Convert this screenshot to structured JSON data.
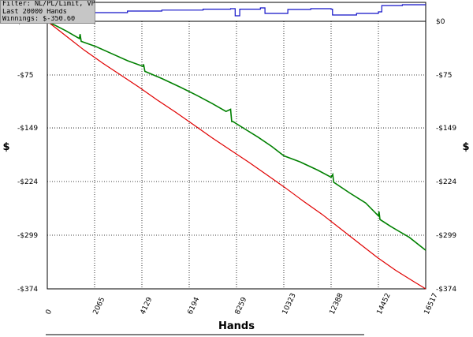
{
  "filter_box": {
    "line1": "Filter: NL/PL/Limit, VPIP = False",
    "line2": "Last  20000 Hands",
    "line3": "Winnings: $-350.60"
  },
  "chart_data": {
    "type": "line",
    "xlabel": "Hands",
    "ylabel_left": "$",
    "ylabel_right": "$",
    "xlim": [
      0,
      16517
    ],
    "ylim": [
      -374,
      0
    ],
    "x_ticks": [
      "0",
      "2065",
      "4129",
      "6194",
      "8259",
      "10323",
      "12388",
      "14452",
      "16517"
    ],
    "y_ticks": [
      "$0",
      "-$75",
      "-$149",
      "-$224",
      "-$299",
      "-$374"
    ],
    "y_tick_values": [
      0,
      -75,
      -149,
      -224,
      -299,
      -374
    ],
    "grid": true,
    "colors": {
      "green": "#008000",
      "red": "#e00000",
      "blue": "#1010c8",
      "grid": "#000000"
    },
    "series": [
      {
        "color": "green",
        "x": [
          0,
          800,
          1400,
          1430,
          1480,
          2100,
          2800,
          3500,
          4180,
          4200,
          4260,
          5000,
          5800,
          6500,
          7200,
          7800,
          8000,
          8050,
          8100,
          8600,
          9200,
          9800,
          10323,
          11000,
          11800,
          12388,
          12460,
          12500,
          13200,
          13900,
          14452,
          14480,
          14520,
          15000,
          15800,
          16517
        ],
        "y": [
          0,
          -13,
          -24,
          -18,
          -28,
          -35,
          -45,
          -55,
          -63,
          -60,
          -70,
          -80,
          -92,
          -103,
          -115,
          -126,
          -123,
          -140,
          -140,
          -150,
          -162,
          -175,
          -188,
          -196,
          -208,
          -218,
          -214,
          -225,
          -240,
          -254,
          -272,
          -266,
          -277,
          -287,
          -302,
          -320
        ]
      },
      {
        "color": "red",
        "x": [
          0,
          800,
          1600,
          2400,
          3200,
          4000,
          4800,
          5600,
          6400,
          7200,
          8000,
          8800,
          9600,
          10400,
          11200,
          12000,
          12800,
          13600,
          14400,
          15200,
          16000,
          16517
        ],
        "y": [
          0,
          -20,
          -40,
          -58,
          -75,
          -92,
          -110,
          -127,
          -145,
          -163,
          -180,
          -197,
          -215,
          -233,
          -252,
          -270,
          -290,
          -310,
          -330,
          -348,
          -364,
          -374
        ]
      }
    ],
    "blue_strip": {
      "color": "blue",
      "x": [
        0,
        1000,
        2000,
        3500,
        5000,
        6800,
        8000,
        8200,
        8400,
        9300,
        9500,
        10500,
        11500,
        12388,
        12450,
        13500,
        14452,
        14600,
        15500,
        16517
      ],
      "level": [
        0.2,
        0.35,
        0.5,
        0.6,
        0.66,
        0.72,
        0.75,
        0.3,
        0.72,
        0.8,
        0.45,
        0.7,
        0.75,
        0.72,
        0.35,
        0.45,
        0.55,
        0.95,
        1.0,
        1.0
      ]
    }
  }
}
